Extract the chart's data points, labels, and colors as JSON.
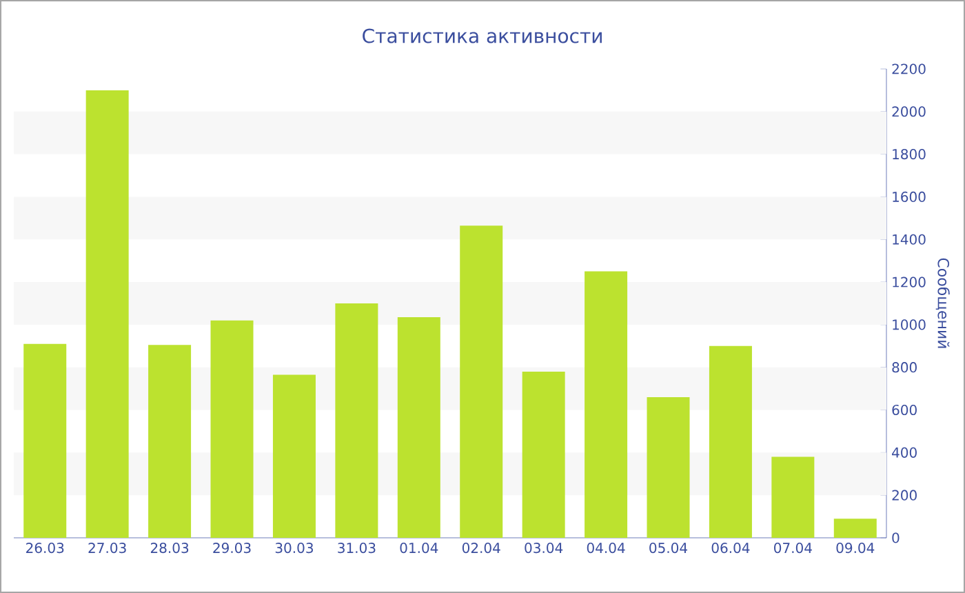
{
  "chart_data": {
    "type": "bar",
    "title": "Статистика активности",
    "ylabel": "Сообщений",
    "categories": [
      "26.03",
      "27.03",
      "28.03",
      "29.03",
      "30.03",
      "31.03",
      "01.04",
      "02.04",
      "03.04",
      "04.04",
      "05.04",
      "06.04",
      "07.04",
      "09.04"
    ],
    "values": [
      910,
      2100,
      905,
      1020,
      765,
      1100,
      1035,
      1465,
      780,
      1250,
      660,
      900,
      380,
      90
    ],
    "color": "#bce22f",
    "ylim": [
      0,
      2200
    ],
    "yticks": [
      0,
      200,
      400,
      600,
      800,
      1000,
      1200,
      1400,
      1600,
      1800,
      2000,
      2200
    ],
    "bands": [
      {
        "axis": "y",
        "from": 200,
        "to": 400,
        "color": "#f7f7f7"
      },
      {
        "axis": "y",
        "from": 600,
        "to": 800,
        "color": "#f7f7f7"
      },
      {
        "axis": "y",
        "from": 1000,
        "to": 1200,
        "color": "#f7f7f7"
      },
      {
        "axis": "y",
        "from": 1400,
        "to": 1600,
        "color": "#f7f7f7"
      },
      {
        "axis": "y",
        "from": 1800,
        "to": 2000,
        "color": "#f7f7f7"
      }
    ]
  }
}
